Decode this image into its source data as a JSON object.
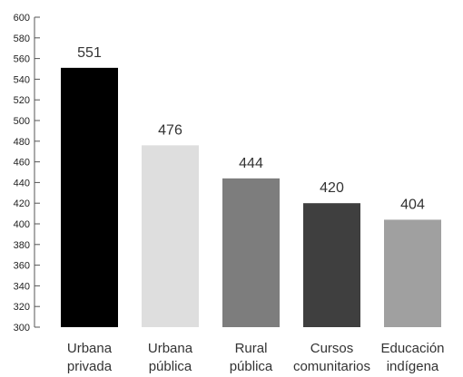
{
  "chart_data": {
    "type": "bar",
    "title": "",
    "xlabel": "",
    "ylabel": "",
    "ylim": [
      300,
      600
    ],
    "ytick_step": 20,
    "grid": false,
    "categories": [
      [
        "Urbana",
        "privada"
      ],
      [
        "Urbana",
        "pública"
      ],
      [
        "Rural",
        "pública"
      ],
      [
        "Cursos",
        "comunitarios"
      ],
      [
        "Educación",
        "indígena"
      ]
    ],
    "values": [
      551,
      476,
      444,
      420,
      404
    ],
    "colors": [
      "#000000",
      "#dedede",
      "#7d7d7d",
      "#3f3f3f",
      "#a0a0a0"
    ]
  }
}
